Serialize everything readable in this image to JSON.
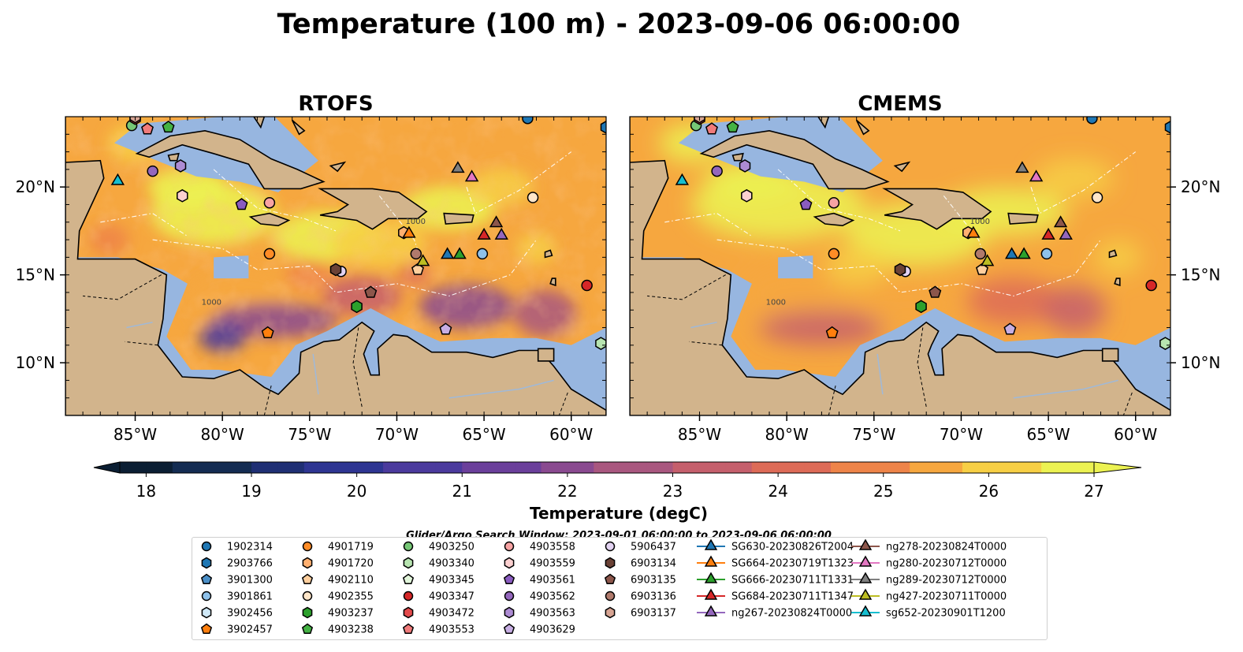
{
  "figure": {
    "title": "Temperature (100 m) - 2023-09-06 06:00:00",
    "search_window": "Glider/Argo Search Window: 2023-09-01 06:00:00 to 2023-09-06 06:00:00"
  },
  "colors": {
    "land": "#d2b48c",
    "shelf": "#97b6e0",
    "coast": "#000000",
    "ramp": [
      "#0b1e33",
      "#142c52",
      "#1f2f74",
      "#2e3592",
      "#4b3a9d",
      "#6b3f9b",
      "#8a4a90",
      "#a9577f",
      "#c55f6c",
      "#dd6b57",
      "#ee8449",
      "#f6a73f",
      "#f7cf45",
      "#ecf252"
    ]
  },
  "chart_data": [
    {
      "type": "heatmap",
      "panel": "left",
      "title": "RTOFS",
      "xlim": [
        -89,
        -58
      ],
      "ylim": [
        7,
        24
      ],
      "xticks": [
        "85°W",
        "80°W",
        "75°W",
        "70°W",
        "65°W",
        "60°W"
      ],
      "xtick_values": [
        -85,
        -80,
        -75,
        -70,
        -65,
        -60
      ],
      "yticks": [
        "20°N",
        "15°N",
        "10°N"
      ],
      "ytick_values": [
        20,
        15,
        10
      ],
      "ytick_side": "left",
      "contour_labels": [
        "1000",
        "1000"
      ]
    },
    {
      "type": "heatmap",
      "panel": "right",
      "title": "CMEMS",
      "xlim": [
        -89,
        -58
      ],
      "ylim": [
        7,
        24
      ],
      "xticks": [
        "85°W",
        "80°W",
        "75°W",
        "70°W",
        "65°W",
        "60°W"
      ],
      "xtick_values": [
        -85,
        -80,
        -75,
        -70,
        -65,
        -60
      ],
      "yticks": [
        "20°N",
        "15°N",
        "10°N"
      ],
      "ytick_values": [
        20,
        15,
        10
      ],
      "ytick_side": "right",
      "contour_labels": [
        "1000",
        "1000"
      ]
    }
  ],
  "colorbar": {
    "label": "Temperature (degC)",
    "min": 17.75,
    "max": 27.0,
    "step": 0.25,
    "extend": "both",
    "ticks": [
      "18",
      "19",
      "20",
      "21",
      "22",
      "23",
      "24",
      "25",
      "26",
      "27"
    ],
    "tick_values": [
      18,
      19,
      20,
      21,
      22,
      23,
      24,
      25,
      26,
      27
    ]
  },
  "legend": {
    "columns": [
      [
        {
          "label": "1902314",
          "marker": "circle",
          "color": "#1f77b4"
        },
        {
          "label": "2903766",
          "marker": "hexagon",
          "color": "#1f77b4"
        },
        {
          "label": "3901300",
          "marker": "pentagon",
          "color": "#4b8fc7"
        },
        {
          "label": "3901861",
          "marker": "circle",
          "color": "#8ec1ea"
        },
        {
          "label": "3902456",
          "marker": "hexagon",
          "color": "#cfe8f7"
        },
        {
          "label": "3902457",
          "marker": "pentagon",
          "color": "#ff7f0e"
        }
      ],
      [
        {
          "label": "4901719",
          "marker": "circle",
          "color": "#ff8c26"
        },
        {
          "label": "4901720",
          "marker": "hexagon",
          "color": "#ffb070"
        },
        {
          "label": "4902110",
          "marker": "pentagon",
          "color": "#ffcf9e"
        },
        {
          "label": "4902355",
          "marker": "circle",
          "color": "#ffe6c9"
        },
        {
          "label": "4903237",
          "marker": "hexagon",
          "color": "#2ca02c"
        },
        {
          "label": "4903238",
          "marker": "pentagon",
          "color": "#44b244"
        }
      ],
      [
        {
          "label": "4903250",
          "marker": "circle",
          "color": "#76c776"
        },
        {
          "label": "4903340",
          "marker": "hexagon",
          "color": "#b7e4b0"
        },
        {
          "label": "4903345",
          "marker": "pentagon",
          "color": "#e2f6db"
        },
        {
          "label": "4903347",
          "marker": "circle",
          "color": "#d62728"
        },
        {
          "label": "4903472",
          "marker": "hexagon",
          "color": "#e34a4b"
        },
        {
          "label": "4903553",
          "marker": "pentagon",
          "color": "#f07b7b"
        }
      ],
      [
        {
          "label": "4903558",
          "marker": "circle",
          "color": "#f7a3a3"
        },
        {
          "label": "4903559",
          "marker": "hexagon",
          "color": "#fcd0d0"
        },
        {
          "label": "4903561",
          "marker": "pentagon",
          "color": "#8a5cc0"
        },
        {
          "label": "4903562",
          "marker": "circle",
          "color": "#9467bd"
        },
        {
          "label": "4903563",
          "marker": "hexagon",
          "color": "#ad8bd3"
        },
        {
          "label": "4903629",
          "marker": "pentagon",
          "color": "#c7aee3"
        }
      ],
      [
        {
          "label": "5906437",
          "marker": "circle",
          "color": "#e3d3f2"
        },
        {
          "label": "6903134",
          "marker": "hexagon",
          "color": "#6b4236"
        },
        {
          "label": "6903135",
          "marker": "pentagon",
          "color": "#8c564b"
        },
        {
          "label": "6903136",
          "marker": "circle",
          "color": "#b07a6c"
        },
        {
          "label": "6903137",
          "marker": "hexagon",
          "color": "#d7a493"
        }
      ],
      [
        {
          "label": "SG630-20230826T2004",
          "marker": "triangle",
          "color": "#1f77b4"
        },
        {
          "label": "SG664-20230719T1323",
          "marker": "triangle",
          "color": "#ff7f0e"
        },
        {
          "label": "SG666-20230711T1331",
          "marker": "triangle",
          "color": "#2ca02c"
        },
        {
          "label": "SG684-20230711T1347",
          "marker": "triangle",
          "color": "#d62728"
        },
        {
          "label": "ng267-20230824T0000",
          "marker": "triangle",
          "color": "#9467bd"
        }
      ],
      [
        {
          "label": "ng278-20230824T0000",
          "marker": "triangle",
          "color": "#8c564b"
        },
        {
          "label": "ng280-20230712T0000",
          "marker": "triangle",
          "color": "#e377c2"
        },
        {
          "label": "ng289-20230712T0000",
          "marker": "triangle",
          "color": "#7f7f7f"
        },
        {
          "label": "ng427-20230711T0000",
          "marker": "triangle",
          "color": "#bcbd22"
        },
        {
          "label": "sg652-20230901T1200",
          "marker": "triangle",
          "color": "#17becf"
        }
      ]
    ]
  },
  "observations": [
    {
      "id": "1902314",
      "lon": -62.5,
      "lat": 23.9
    },
    {
      "id": "2903766",
      "lon": -58.0,
      "lat": 23.4
    },
    {
      "id": "3901861",
      "lon": -65.1,
      "lat": 16.2
    },
    {
      "id": "3902457",
      "lon": -77.4,
      "lat": 11.7
    },
    {
      "id": "4901719",
      "lon": -77.3,
      "lat": 16.2
    },
    {
      "id": "4901720",
      "lon": -69.6,
      "lat": 17.4
    },
    {
      "id": "4902110",
      "lon": -68.8,
      "lat": 15.3
    },
    {
      "id": "4902355",
      "lon": -62.2,
      "lat": 19.4
    },
    {
      "id": "4903237",
      "lon": -72.3,
      "lat": 13.2
    },
    {
      "id": "4903238",
      "lon": -83.1,
      "lat": 23.4
    },
    {
      "id": "4903250",
      "lon": -85.2,
      "lat": 23.5
    },
    {
      "id": "4903340",
      "lon": -58.3,
      "lat": 11.1
    },
    {
      "id": "4903347",
      "lon": -59.1,
      "lat": 14.4
    },
    {
      "id": "4903472",
      "lon": -85.0,
      "lat": 23.9
    },
    {
      "id": "4903553",
      "lon": -84.3,
      "lat": 23.3
    },
    {
      "id": "4903558",
      "lon": -77.3,
      "lat": 19.1
    },
    {
      "id": "4903559",
      "lon": -82.3,
      "lat": 19.5
    },
    {
      "id": "4903561",
      "lon": -78.9,
      "lat": 19.0
    },
    {
      "id": "4903562",
      "lon": -84.0,
      "lat": 20.9
    },
    {
      "id": "4903563",
      "lon": -82.4,
      "lat": 21.2
    },
    {
      "id": "4903629",
      "lon": -67.2,
      "lat": 11.9
    },
    {
      "id": "5906437",
      "lon": -73.2,
      "lat": 15.2
    },
    {
      "id": "6903134",
      "lon": -73.5,
      "lat": 15.3
    },
    {
      "id": "6903135",
      "lon": -71.5,
      "lat": 14.0
    },
    {
      "id": "6903136",
      "lon": -68.9,
      "lat": 16.2
    },
    {
      "id": "6903137",
      "lon": -85.0,
      "lat": 24.0
    },
    {
      "id": "SG630-20230826T2004",
      "lon": -67.1,
      "lat": 16.2
    },
    {
      "id": "SG664-20230719T1323",
      "lon": -69.3,
      "lat": 17.4
    },
    {
      "id": "SG666-20230711T1331",
      "lon": -66.4,
      "lat": 16.2
    },
    {
      "id": "SG684-20230711T1347",
      "lon": -65.0,
      "lat": 17.3
    },
    {
      "id": "ng267-20230824T0000",
      "lon": -64.0,
      "lat": 17.3
    },
    {
      "id": "ng278-20230824T0000",
      "lon": -64.3,
      "lat": 18.0
    },
    {
      "id": "ng280-20230712T0000",
      "lon": -65.7,
      "lat": 20.6
    },
    {
      "id": "ng289-20230712T0000",
      "lon": -66.5,
      "lat": 21.1
    },
    {
      "id": "ng427-20230711T0000",
      "lon": -68.5,
      "lat": 15.8
    },
    {
      "id": "sg652-20230901T1200",
      "lon": -86.0,
      "lat": 20.4
    }
  ]
}
